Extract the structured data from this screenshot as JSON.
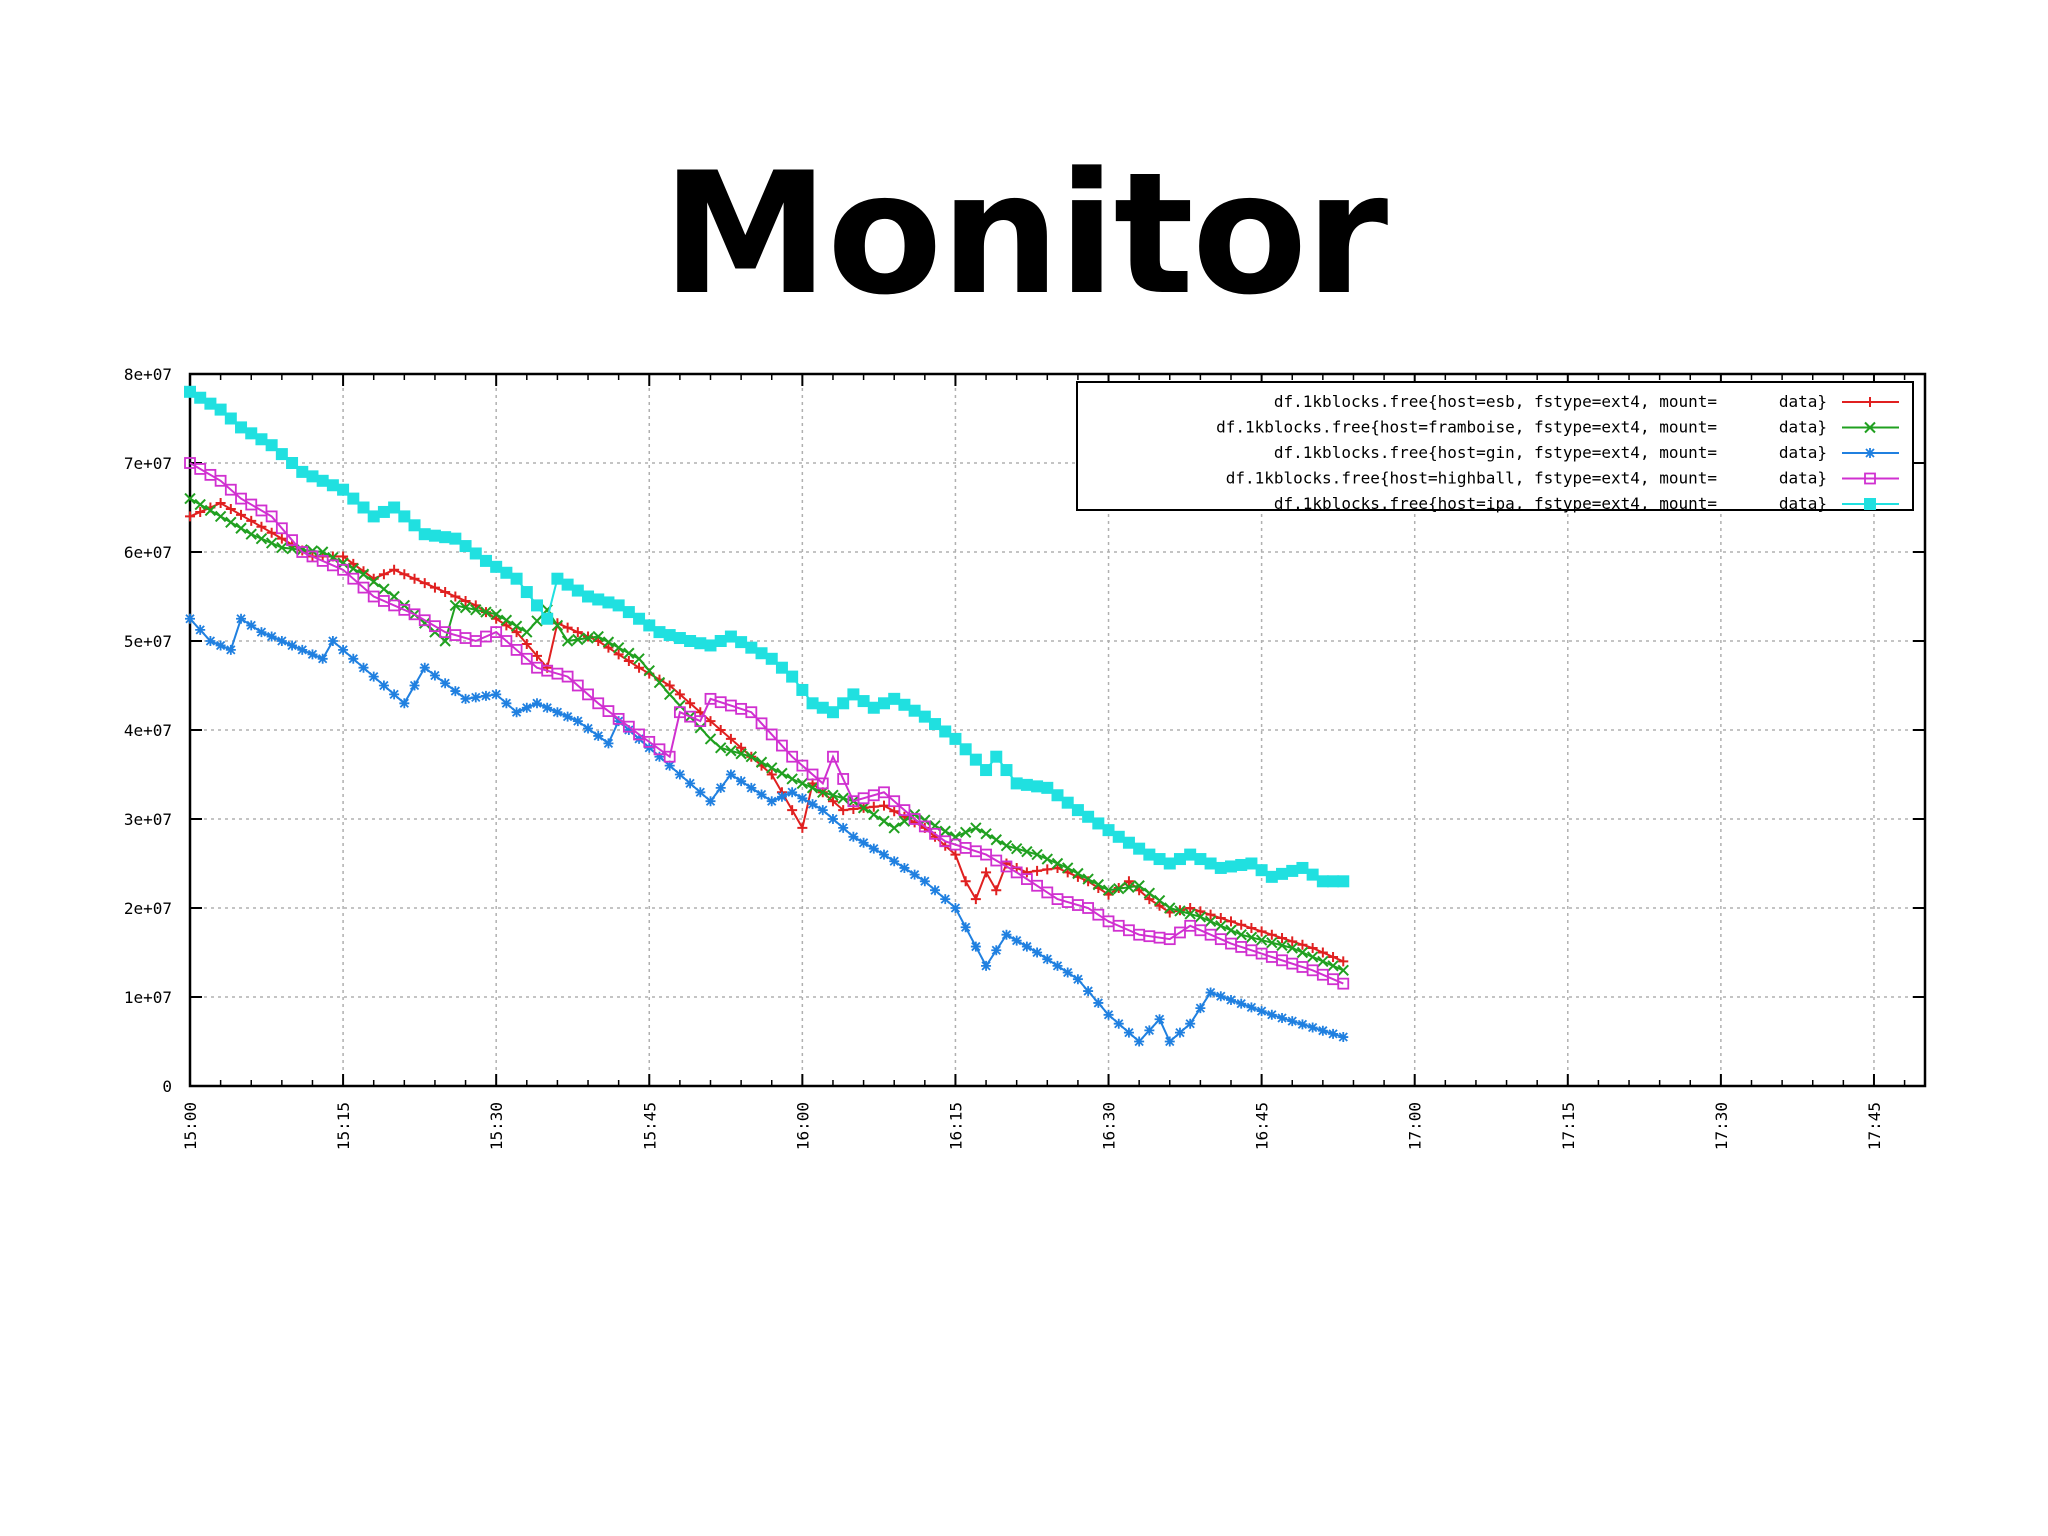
{
  "slide": {
    "title": "Monitor"
  },
  "chart_data": {
    "type": "line",
    "title": "",
    "xlabel": "",
    "ylabel": "",
    "grid": true,
    "legend_position": "top-right",
    "xlim_minutes": [
      0,
      170
    ],
    "ylim": [
      0,
      80000000
    ],
    "x_ticks": [
      {
        "m": 0,
        "label": "15:00"
      },
      {
        "m": 15,
        "label": "15:15"
      },
      {
        "m": 30,
        "label": "15:30"
      },
      {
        "m": 45,
        "label": "15:45"
      },
      {
        "m": 60,
        "label": "16:00"
      },
      {
        "m": 75,
        "label": "16:15"
      },
      {
        "m": 90,
        "label": "16:30"
      },
      {
        "m": 105,
        "label": "16:45"
      },
      {
        "m": 120,
        "label": "17:00"
      },
      {
        "m": 135,
        "label": "17:15"
      },
      {
        "m": 150,
        "label": "17:30"
      },
      {
        "m": 165,
        "label": "17:45"
      }
    ],
    "y_ticks": [
      {
        "v": 0,
        "label": "0"
      },
      {
        "v": 10000000,
        "label": "1e+07"
      },
      {
        "v": 20000000,
        "label": "2e+07"
      },
      {
        "v": 30000000,
        "label": "3e+07"
      },
      {
        "v": 40000000,
        "label": "4e+07"
      },
      {
        "v": 50000000,
        "label": "5e+07"
      },
      {
        "v": 60000000,
        "label": "6e+07"
      },
      {
        "v": 70000000,
        "label": "7e+07"
      },
      {
        "v": 80000000,
        "label": "8e+07"
      }
    ],
    "series": [
      {
        "name": "df.1kblocks.free{host=esb, fstype=ext4, mount=",
        "name_suffix": "data}",
        "color": "#e02020",
        "marker": "plus",
        "points": [
          [
            "15:00",
            64000000
          ],
          [
            "15:03",
            65500000
          ],
          [
            "15:06",
            63500000
          ],
          [
            "15:09",
            61500000
          ],
          [
            "15:12",
            59500000
          ],
          [
            "15:15",
            59500000
          ],
          [
            "15:18",
            57000000
          ],
          [
            "15:20",
            58000000
          ],
          [
            "15:24",
            56000000
          ],
          [
            "15:28",
            54000000
          ],
          [
            "15:32",
            51000000
          ],
          [
            "15:35",
            47000000
          ],
          [
            "15:36",
            52000000
          ],
          [
            "15:40",
            50000000
          ],
          [
            "15:44",
            47000000
          ],
          [
            "15:47",
            45000000
          ],
          [
            "15:51",
            41000000
          ],
          [
            "15:54",
            38000000
          ],
          [
            "15:57",
            35000000
          ],
          [
            "16:00",
            29000000
          ],
          [
            "16:01",
            34000000
          ],
          [
            "16:04",
            31000000
          ],
          [
            "16:08",
            31500000
          ],
          [
            "16:12",
            29000000
          ],
          [
            "16:15",
            26000000
          ],
          [
            "16:16",
            23000000
          ],
          [
            "16:17",
            21000000
          ],
          [
            "16:18",
            24000000
          ],
          [
            "16:19",
            22000000
          ],
          [
            "16:20",
            25000000
          ],
          [
            "16:22",
            24000000
          ],
          [
            "16:25",
            24500000
          ],
          [
            "16:28",
            23000000
          ],
          [
            "16:30",
            21500000
          ],
          [
            "16:32",
            23000000
          ],
          [
            "16:34",
            21000000
          ],
          [
            "16:36",
            19500000
          ],
          [
            "16:38",
            20000000
          ],
          [
            "16:42",
            18500000
          ],
          [
            "16:46",
            17000000
          ],
          [
            "16:50",
            15500000
          ],
          [
            "16:53",
            14000000
          ]
        ]
      },
      {
        "name": "df.1kblocks.free{host=framboise, fstype=ext4, mount=",
        "name_suffix": "data}",
        "color": "#20a020",
        "marker": "x",
        "points": [
          [
            "15:00",
            66000000
          ],
          [
            "15:03",
            64000000
          ],
          [
            "15:06",
            62000000
          ],
          [
            "15:09",
            60500000
          ],
          [
            "15:13",
            60000000
          ],
          [
            "15:17",
            57500000
          ],
          [
            "15:20",
            55000000
          ],
          [
            "15:25",
            50000000
          ],
          [
            "15:26",
            54000000
          ],
          [
            "15:30",
            53000000
          ],
          [
            "15:33",
            51000000
          ],
          [
            "15:35",
            53500000
          ],
          [
            "15:37",
            50000000
          ],
          [
            "15:40",
            50500000
          ],
          [
            "15:44",
            48000000
          ],
          [
            "15:47",
            44000000
          ],
          [
            "15:51",
            39000000
          ],
          [
            "15:52",
            38000000
          ],
          [
            "15:55",
            37000000
          ],
          [
            "15:59",
            34500000
          ],
          [
            "16:02",
            33000000
          ],
          [
            "16:05",
            32000000
          ],
          [
            "16:09",
            29000000
          ],
          [
            "16:11",
            30500000
          ],
          [
            "16:15",
            28000000
          ],
          [
            "16:17",
            29000000
          ],
          [
            "16:20",
            27000000
          ],
          [
            "16:23",
            26000000
          ],
          [
            "16:26",
            24500000
          ],
          [
            "16:30",
            22000000
          ],
          [
            "16:33",
            22500000
          ],
          [
            "16:36",
            20000000
          ],
          [
            "16:39",
            19000000
          ],
          [
            "16:43",
            17000000
          ],
          [
            "16:48",
            15500000
          ],
          [
            "16:53",
            13000000
          ]
        ]
      },
      {
        "name": "df.1kblocks.free{host=gin, fstype=ext4, mount=",
        "name_suffix": "data}",
        "color": "#2080e0",
        "marker": "asterisk",
        "points": [
          [
            "15:00",
            52500000
          ],
          [
            "15:02",
            50000000
          ],
          [
            "15:04",
            49000000
          ],
          [
            "15:05",
            52500000
          ],
          [
            "15:07",
            51000000
          ],
          [
            "15:10",
            49500000
          ],
          [
            "15:13",
            48000000
          ],
          [
            "15:14",
            50000000
          ],
          [
            "15:18",
            46000000
          ],
          [
            "15:21",
            43000000
          ],
          [
            "15:23",
            47000000
          ],
          [
            "15:27",
            43500000
          ],
          [
            "15:30",
            44000000
          ],
          [
            "15:32",
            42000000
          ],
          [
            "15:34",
            43000000
          ],
          [
            "15:38",
            41000000
          ],
          [
            "15:41",
            38500000
          ],
          [
            "15:42",
            41000000
          ],
          [
            "15:45",
            38000000
          ],
          [
            "15:48",
            35000000
          ],
          [
            "15:51",
            32000000
          ],
          [
            "15:53",
            35000000
          ],
          [
            "15:57",
            32000000
          ],
          [
            "15:59",
            33000000
          ],
          [
            "16:02",
            31000000
          ],
          [
            "16:05",
            28000000
          ],
          [
            "16:08",
            26000000
          ],
          [
            "16:12",
            23000000
          ],
          [
            "16:15",
            20000000
          ],
          [
            "16:18",
            13500000
          ],
          [
            "16:20",
            17000000
          ],
          [
            "16:23",
            15000000
          ],
          [
            "16:27",
            12000000
          ],
          [
            "16:30",
            8000000
          ],
          [
            "16:33",
            5000000
          ],
          [
            "16:35",
            7500000
          ],
          [
            "16:36",
            5000000
          ],
          [
            "16:38",
            7000000
          ],
          [
            "16:40",
            10500000
          ],
          [
            "16:46",
            8000000
          ],
          [
            "16:53",
            5500000
          ]
        ]
      },
      {
        "name": "df.1kblocks.free{host=highball, fstype=ext4, mount=",
        "name_suffix": "data}",
        "color": "#d030d0",
        "marker": "square-open",
        "points": [
          [
            "15:00",
            70000000
          ],
          [
            "15:03",
            68000000
          ],
          [
            "15:05",
            66000000
          ],
          [
            "15:08",
            64000000
          ],
          [
            "15:11",
            60000000
          ],
          [
            "15:15",
            58000000
          ],
          [
            "15:18",
            55000000
          ],
          [
            "15:22",
            53000000
          ],
          [
            "15:25",
            51000000
          ],
          [
            "15:28",
            50000000
          ],
          [
            "15:30",
            51000000
          ],
          [
            "15:34",
            47000000
          ],
          [
            "15:37",
            46000000
          ],
          [
            "15:40",
            43000000
          ],
          [
            "15:44",
            39500000
          ],
          [
            "15:47",
            37000000
          ],
          [
            "15:48",
            42000000
          ],
          [
            "15:50",
            41000000
          ],
          [
            "15:51",
            43500000
          ],
          [
            "15:55",
            42000000
          ],
          [
            "15:59",
            37000000
          ],
          [
            "16:02",
            34000000
          ],
          [
            "16:03",
            37000000
          ],
          [
            "16:05",
            32000000
          ],
          [
            "16:08",
            33000000
          ],
          [
            "16:11",
            30000000
          ],
          [
            "16:14",
            27500000
          ],
          [
            "16:18",
            26000000
          ],
          [
            "16:21",
            24000000
          ],
          [
            "16:25",
            21000000
          ],
          [
            "16:28",
            20000000
          ],
          [
            "16:30",
            18500000
          ],
          [
            "16:33",
            17000000
          ],
          [
            "16:36",
            16500000
          ],
          [
            "16:38",
            18000000
          ],
          [
            "16:42",
            16000000
          ],
          [
            "16:46",
            14500000
          ],
          [
            "16:50",
            13000000
          ],
          [
            "16:53",
            11500000
          ]
        ]
      },
      {
        "name": "df.1kblocks.free{host=ipa, fstype=ext4, mount=",
        "name_suffix": "data}",
        "color": "#20e0e0",
        "marker": "square-filled",
        "points": [
          [
            "15:00",
            78000000
          ],
          [
            "15:03",
            76000000
          ],
          [
            "15:05",
            74000000
          ],
          [
            "15:08",
            72000000
          ],
          [
            "15:11",
            69000000
          ],
          [
            "15:15",
            67000000
          ],
          [
            "15:18",
            64000000
          ],
          [
            "15:20",
            65000000
          ],
          [
            "15:23",
            62000000
          ],
          [
            "15:26",
            61500000
          ],
          [
            "15:29",
            59000000
          ],
          [
            "15:32",
            57000000
          ],
          [
            "15:34",
            54000000
          ],
          [
            "15:35",
            52500000
          ],
          [
            "15:36",
            57000000
          ],
          [
            "15:39",
            55000000
          ],
          [
            "15:42",
            54000000
          ],
          [
            "15:46",
            51000000
          ],
          [
            "15:49",
            50000000
          ],
          [
            "15:51",
            49500000
          ],
          [
            "15:53",
            50500000
          ],
          [
            "15:57",
            48000000
          ],
          [
            "15:59",
            46000000
          ],
          [
            "16:01",
            43000000
          ],
          [
            "16:03",
            42000000
          ],
          [
            "16:05",
            44000000
          ],
          [
            "16:07",
            42500000
          ],
          [
            "16:09",
            43500000
          ],
          [
            "16:12",
            41500000
          ],
          [
            "16:15",
            39000000
          ],
          [
            "16:18",
            35500000
          ],
          [
            "16:19",
            37000000
          ],
          [
            "16:21",
            34000000
          ],
          [
            "16:24",
            33500000
          ],
          [
            "16:27",
            31000000
          ],
          [
            "16:29",
            29500000
          ],
          [
            "16:31",
            28000000
          ],
          [
            "16:34",
            26000000
          ],
          [
            "16:36",
            25000000
          ],
          [
            "16:38",
            26000000
          ],
          [
            "16:41",
            24500000
          ],
          [
            "16:44",
            25000000
          ],
          [
            "16:46",
            23500000
          ],
          [
            "16:49",
            24500000
          ],
          [
            "16:51",
            23000000
          ],
          [
            "16:53",
            23000000
          ]
        ]
      }
    ]
  }
}
